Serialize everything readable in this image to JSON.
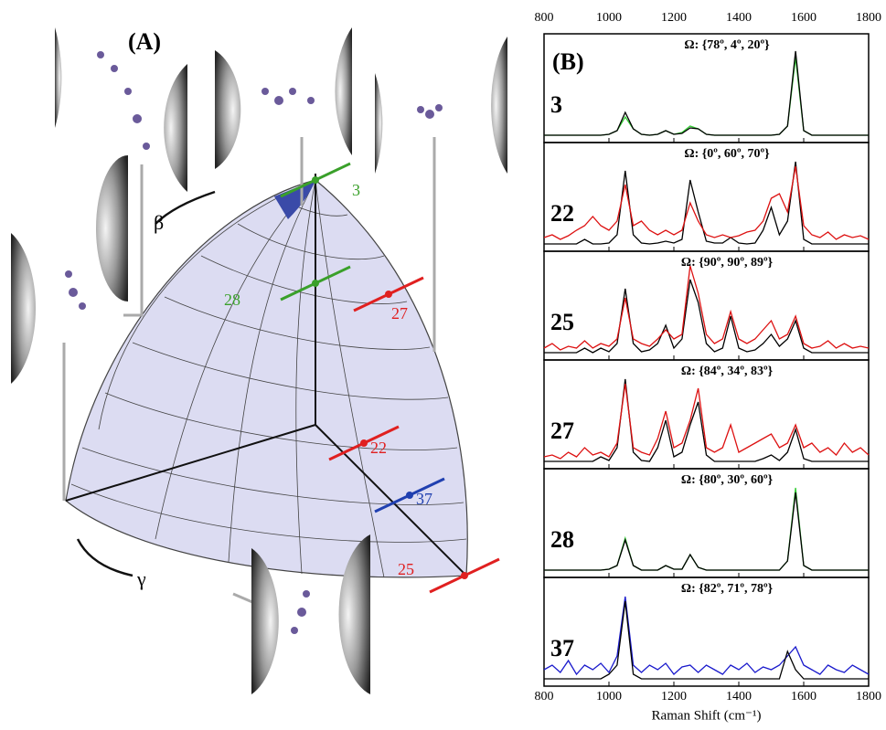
{
  "panel_a": {
    "panel_label": "(A)",
    "beta": "β",
    "gamma": "γ",
    "orientations": [
      {
        "label": "3",
        "color": "#3aa02a"
      },
      {
        "label": "28",
        "color": "#3aa02a"
      },
      {
        "label": "27",
        "color": "#e02020"
      },
      {
        "label": "22",
        "color": "#e02020"
      },
      {
        "label": "37",
        "color": "#2040b0"
      },
      {
        "label": "25",
        "color": "#e02020"
      }
    ]
  },
  "panel_b_label": "(B)",
  "chart_data": [
    {
      "type": "line",
      "title": "3",
      "subtitle": "Ω: {78º, 4º, 20º}",
      "xlim": [
        800,
        1800
      ],
      "xticks": [
        800,
        1000,
        1200,
        1400,
        1600,
        1800
      ],
      "ylim": [
        0,
        1.05
      ],
      "x": [
        800,
        825,
        850,
        875,
        900,
        925,
        950,
        975,
        1000,
        1025,
        1050,
        1075,
        1100,
        1125,
        1150,
        1175,
        1200,
        1225,
        1250,
        1275,
        1300,
        1325,
        1350,
        1375,
        1400,
        1425,
        1450,
        1475,
        1500,
        1525,
        1550,
        1575,
        1600,
        1625,
        1650,
        1675,
        1700,
        1725,
        1750,
        1775,
        1800
      ],
      "series": [
        {
          "color": "#33cc33",
          "values": [
            0.05,
            0.05,
            0.05,
            0.05,
            0.05,
            0.05,
            0.05,
            0.05,
            0.06,
            0.1,
            0.25,
            0.12,
            0.06,
            0.05,
            0.06,
            0.1,
            0.06,
            0.08,
            0.15,
            0.12,
            0.06,
            0.05,
            0.05,
            0.05,
            0.05,
            0.05,
            0.05,
            0.05,
            0.05,
            0.06,
            0.15,
            0.9,
            0.1,
            0.05,
            0.05,
            0.05,
            0.05,
            0.05,
            0.05,
            0.05,
            0.05
          ]
        },
        {
          "color": "#000000",
          "values": [
            0.05,
            0.05,
            0.05,
            0.05,
            0.05,
            0.05,
            0.05,
            0.05,
            0.06,
            0.1,
            0.3,
            0.12,
            0.06,
            0.05,
            0.06,
            0.1,
            0.06,
            0.07,
            0.13,
            0.12,
            0.06,
            0.05,
            0.05,
            0.05,
            0.05,
            0.05,
            0.05,
            0.05,
            0.05,
            0.06,
            0.15,
            0.97,
            0.1,
            0.05,
            0.05,
            0.05,
            0.05,
            0.05,
            0.05,
            0.05,
            0.05
          ]
        }
      ]
    },
    {
      "type": "line",
      "title": "22",
      "subtitle": "Ω: {0º, 60º, 70º}",
      "xlim": [
        800,
        1800
      ],
      "xticks": [
        800,
        1000,
        1200,
        1400,
        1600,
        1800
      ],
      "ylim": [
        0,
        1.05
      ],
      "x": [
        800,
        825,
        850,
        875,
        900,
        925,
        950,
        975,
        1000,
        1025,
        1050,
        1075,
        1100,
        1125,
        1150,
        1175,
        1200,
        1225,
        1250,
        1275,
        1300,
        1325,
        1350,
        1375,
        1400,
        1425,
        1450,
        1475,
        1500,
        1525,
        1550,
        1575,
        1600,
        1625,
        1650,
        1675,
        1700,
        1725,
        1750,
        1775,
        1800
      ],
      "series": [
        {
          "color": "#000000",
          "values": [
            0.05,
            0.05,
            0.05,
            0.05,
            0.05,
            0.1,
            0.05,
            0.05,
            0.06,
            0.15,
            0.85,
            0.15,
            0.06,
            0.05,
            0.06,
            0.08,
            0.06,
            0.1,
            0.75,
            0.4,
            0.08,
            0.06,
            0.06,
            0.12,
            0.06,
            0.05,
            0.06,
            0.2,
            0.45,
            0.15,
            0.3,
            0.95,
            0.1,
            0.05,
            0.05,
            0.05,
            0.05,
            0.05,
            0.05,
            0.05,
            0.05
          ]
        },
        {
          "color": "#dd1111",
          "values": [
            0.12,
            0.15,
            0.1,
            0.14,
            0.2,
            0.25,
            0.35,
            0.25,
            0.2,
            0.3,
            0.7,
            0.25,
            0.3,
            0.2,
            0.15,
            0.2,
            0.15,
            0.2,
            0.5,
            0.3,
            0.15,
            0.12,
            0.15,
            0.12,
            0.14,
            0.18,
            0.2,
            0.3,
            0.55,
            0.6,
            0.4,
            0.9,
            0.25,
            0.15,
            0.12,
            0.18,
            0.1,
            0.15,
            0.12,
            0.14,
            0.1
          ]
        }
      ]
    },
    {
      "type": "line",
      "title": "25",
      "subtitle": "Ω: {90º, 90º, 89º}",
      "xlim": [
        800,
        1800
      ],
      "xticks": [
        800,
        1000,
        1200,
        1400,
        1600,
        1800
      ],
      "ylim": [
        0,
        1.05
      ],
      "x": [
        800,
        825,
        850,
        875,
        900,
        925,
        950,
        975,
        1000,
        1025,
        1050,
        1075,
        1100,
        1125,
        1150,
        1175,
        1200,
        1225,
        1250,
        1275,
        1300,
        1325,
        1350,
        1375,
        1400,
        1425,
        1450,
        1475,
        1500,
        1525,
        1550,
        1575,
        1600,
        1625,
        1650,
        1675,
        1700,
        1725,
        1750,
        1775,
        1800
      ],
      "series": [
        {
          "color": "#000000",
          "values": [
            0.05,
            0.05,
            0.05,
            0.05,
            0.05,
            0.1,
            0.05,
            0.1,
            0.06,
            0.15,
            0.75,
            0.15,
            0.06,
            0.08,
            0.15,
            0.35,
            0.1,
            0.2,
            0.85,
            0.6,
            0.15,
            0.06,
            0.1,
            0.45,
            0.1,
            0.06,
            0.08,
            0.15,
            0.25,
            0.12,
            0.2,
            0.4,
            0.1,
            0.05,
            0.05,
            0.05,
            0.05,
            0.05,
            0.05,
            0.05,
            0.05
          ]
        },
        {
          "color": "#dd1111",
          "values": [
            0.1,
            0.15,
            0.08,
            0.12,
            0.1,
            0.18,
            0.1,
            0.15,
            0.12,
            0.2,
            0.65,
            0.2,
            0.15,
            0.12,
            0.2,
            0.3,
            0.2,
            0.25,
            1.0,
            0.7,
            0.25,
            0.15,
            0.2,
            0.5,
            0.2,
            0.15,
            0.2,
            0.3,
            0.4,
            0.2,
            0.25,
            0.45,
            0.15,
            0.1,
            0.12,
            0.18,
            0.1,
            0.15,
            0.1,
            0.12,
            0.1
          ]
        }
      ]
    },
    {
      "type": "line",
      "title": "27",
      "subtitle": "Ω: {84º, 34º, 83º}",
      "xlim": [
        800,
        1800
      ],
      "xticks": [
        800,
        1000,
        1200,
        1400,
        1600,
        1800
      ],
      "ylim": [
        0,
        1.05
      ],
      "x": [
        800,
        825,
        850,
        875,
        900,
        925,
        950,
        975,
        1000,
        1025,
        1050,
        1075,
        1100,
        1125,
        1150,
        1175,
        1200,
        1225,
        1250,
        1275,
        1300,
        1325,
        1350,
        1375,
        1400,
        1425,
        1450,
        1475,
        1500,
        1525,
        1550,
        1575,
        1600,
        1625,
        1650,
        1675,
        1700,
        1725,
        1750,
        1775,
        1800
      ],
      "series": [
        {
          "color": "#000000",
          "values": [
            0.05,
            0.05,
            0.05,
            0.05,
            0.05,
            0.05,
            0.05,
            0.1,
            0.06,
            0.2,
            0.95,
            0.15,
            0.06,
            0.05,
            0.2,
            0.5,
            0.1,
            0.15,
            0.45,
            0.7,
            0.12,
            0.05,
            0.05,
            0.05,
            0.05,
            0.05,
            0.05,
            0.08,
            0.12,
            0.06,
            0.15,
            0.4,
            0.08,
            0.05,
            0.05,
            0.05,
            0.05,
            0.05,
            0.05,
            0.05,
            0.05
          ]
        },
        {
          "color": "#dd1111",
          "values": [
            0.1,
            0.12,
            0.08,
            0.15,
            0.1,
            0.2,
            0.12,
            0.15,
            0.1,
            0.25,
            0.9,
            0.2,
            0.15,
            0.12,
            0.3,
            0.6,
            0.2,
            0.25,
            0.5,
            0.85,
            0.2,
            0.15,
            0.2,
            0.45,
            0.15,
            0.2,
            0.25,
            0.3,
            0.35,
            0.2,
            0.25,
            0.45,
            0.2,
            0.25,
            0.15,
            0.2,
            0.12,
            0.25,
            0.15,
            0.2,
            0.12
          ]
        }
      ]
    },
    {
      "type": "line",
      "title": "28",
      "subtitle": "Ω: {80º, 30º, 60º}",
      "xlim": [
        800,
        1800
      ],
      "xticks": [
        800,
        1000,
        1200,
        1400,
        1600,
        1800
      ],
      "ylim": [
        0,
        1.05
      ],
      "x": [
        800,
        825,
        850,
        875,
        900,
        925,
        950,
        975,
        1000,
        1025,
        1050,
        1075,
        1100,
        1125,
        1150,
        1175,
        1200,
        1225,
        1250,
        1275,
        1300,
        1325,
        1350,
        1375,
        1400,
        1425,
        1450,
        1475,
        1500,
        1525,
        1550,
        1575,
        1600,
        1625,
        1650,
        1675,
        1700,
        1725,
        1750,
        1775,
        1800
      ],
      "series": [
        {
          "color": "#33cc33",
          "values": [
            0.05,
            0.05,
            0.05,
            0.05,
            0.05,
            0.05,
            0.05,
            0.05,
            0.06,
            0.1,
            0.4,
            0.1,
            0.05,
            0.05,
            0.05,
            0.1,
            0.06,
            0.06,
            0.22,
            0.08,
            0.05,
            0.05,
            0.05,
            0.05,
            0.05,
            0.05,
            0.05,
            0.05,
            0.05,
            0.05,
            0.15,
            0.95,
            0.1,
            0.05,
            0.05,
            0.05,
            0.05,
            0.05,
            0.05,
            0.05,
            0.05
          ]
        },
        {
          "color": "#000000",
          "values": [
            0.05,
            0.05,
            0.05,
            0.05,
            0.05,
            0.05,
            0.05,
            0.05,
            0.06,
            0.1,
            0.38,
            0.1,
            0.05,
            0.05,
            0.05,
            0.1,
            0.06,
            0.06,
            0.22,
            0.08,
            0.05,
            0.05,
            0.05,
            0.05,
            0.05,
            0.05,
            0.05,
            0.05,
            0.05,
            0.05,
            0.15,
            0.9,
            0.1,
            0.05,
            0.05,
            0.05,
            0.05,
            0.05,
            0.05,
            0.05,
            0.05
          ]
        }
      ]
    },
    {
      "type": "line",
      "title": "37",
      "subtitle": "Ω: {82º, 71º, 78º}",
      "xlim": [
        800,
        1800
      ],
      "xticks": [
        800,
        1000,
        1200,
        1400,
        1600,
        1800
      ],
      "ylim": [
        0,
        1.05
      ],
      "xlabel": "Raman Shift (cm⁻¹)",
      "x": [
        800,
        825,
        850,
        875,
        900,
        925,
        950,
        975,
        1000,
        1025,
        1050,
        1075,
        1100,
        1125,
        1150,
        1175,
        1200,
        1225,
        1250,
        1275,
        1300,
        1325,
        1350,
        1375,
        1400,
        1425,
        1450,
        1475,
        1500,
        1525,
        1550,
        1575,
        1600,
        1625,
        1650,
        1675,
        1700,
        1725,
        1750,
        1775,
        1800
      ],
      "series": [
        {
          "color": "#1a1acc",
          "values": [
            0.15,
            0.2,
            0.12,
            0.25,
            0.1,
            0.2,
            0.15,
            0.22,
            0.12,
            0.3,
            0.95,
            0.2,
            0.12,
            0.2,
            0.15,
            0.22,
            0.1,
            0.18,
            0.2,
            0.12,
            0.2,
            0.15,
            0.1,
            0.2,
            0.15,
            0.22,
            0.12,
            0.18,
            0.15,
            0.2,
            0.3,
            0.4,
            0.2,
            0.15,
            0.1,
            0.2,
            0.15,
            0.12,
            0.2,
            0.15,
            0.1
          ]
        },
        {
          "color": "#000000",
          "values": [
            0.05,
            0.05,
            0.05,
            0.05,
            0.05,
            0.05,
            0.05,
            0.05,
            0.1,
            0.2,
            0.9,
            0.1,
            0.05,
            0.05,
            0.05,
            0.05,
            0.05,
            0.05,
            0.05,
            0.05,
            0.05,
            0.05,
            0.05,
            0.05,
            0.05,
            0.05,
            0.05,
            0.05,
            0.05,
            0.05,
            0.35,
            0.15,
            0.05,
            0.05,
            0.05,
            0.05,
            0.05,
            0.05,
            0.05,
            0.05,
            0.05
          ]
        }
      ]
    }
  ]
}
